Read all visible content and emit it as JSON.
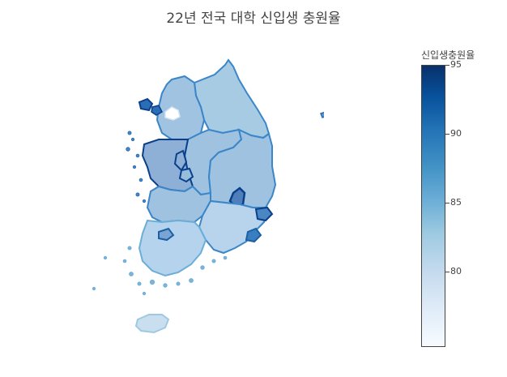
{
  "title": "22년 전국 대학 신입생 충원율",
  "colorbar": {
    "title": "신입생충원율",
    "min": 74.5,
    "max": 95.0,
    "ticks": [
      "80",
      "85",
      "90",
      "95"
    ],
    "scale": "Blues",
    "colors": [
      "#f7fbff",
      "#deebf7",
      "#c6dbef",
      "#9ecae1",
      "#6baed6",
      "#4292c6",
      "#2171b5",
      "#08519c",
      "#08306b"
    ]
  },
  "colors": {
    "border": "#3a86c8",
    "dark_border": "#0a3f8a"
  }
}
